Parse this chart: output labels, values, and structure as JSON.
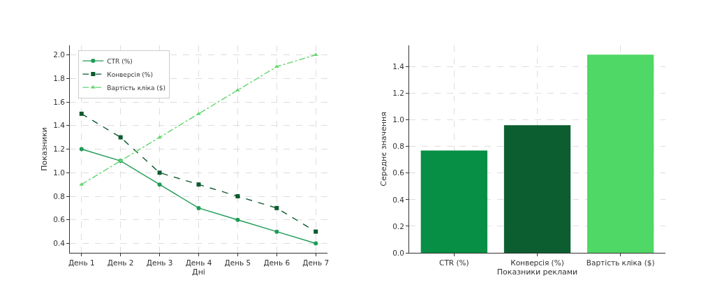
{
  "chart_data": [
    {
      "type": "line",
      "categories": [
        "День 1",
        "День 2",
        "День 3",
        "День 4",
        "День 5",
        "День 6",
        "День 7"
      ],
      "xlabel": "Дні",
      "ylabel": "Показники",
      "ylim": [
        0.32,
        2.08
      ],
      "yticks": [
        0.4,
        0.6,
        0.8,
        {
          "value": 1,
          "label": "1.0"
        },
        1.2,
        1.4,
        1.6,
        1.8,
        {
          "value": 2,
          "label": "2.0"
        }
      ],
      "grid": true,
      "legend": "top left",
      "series": [
        {
          "name": "CTR (%)",
          "color": "#1e9b56",
          "marker": "circle",
          "line_style": "solid",
          "values": [
            1.2,
            1.1,
            0.9,
            0.7,
            0.6,
            0.5,
            0.4
          ]
        },
        {
          "name": "Конверсія (%)",
          "color": "#0c5a2e",
          "marker": "square",
          "line_style": "dashed",
          "values": [
            1.5,
            1.3,
            1.0,
            0.9,
            0.8,
            0.7,
            0.5
          ]
        },
        {
          "name": "Вартість кліка ($)",
          "color": "#62d56e",
          "marker": "triangle",
          "line_style": "dashdot",
          "values": [
            0.9,
            1.1,
            1.3,
            1.5,
            1.7,
            1.9,
            2.0
          ]
        }
      ]
    },
    {
      "type": "bar",
      "categories": [
        "CTR (%)",
        "Конверсія (%)",
        "Вартість кліка ($)"
      ],
      "values": [
        0.77,
        0.96,
        1.49
      ],
      "colors": [
        "#078f45",
        "#0c5e30",
        "#4fd865"
      ],
      "xlabel": "Показники реклами",
      "ylabel": "Середнє значення",
      "ylim": [
        0,
        1.56
      ],
      "yticks": [
        {
          "value": 0,
          "label": "0.0"
        },
        0.2,
        0.4,
        0.6,
        0.8,
        {
          "value": 1,
          "label": "1.0"
        },
        1.2,
        1.4
      ],
      "grid": true
    }
  ]
}
